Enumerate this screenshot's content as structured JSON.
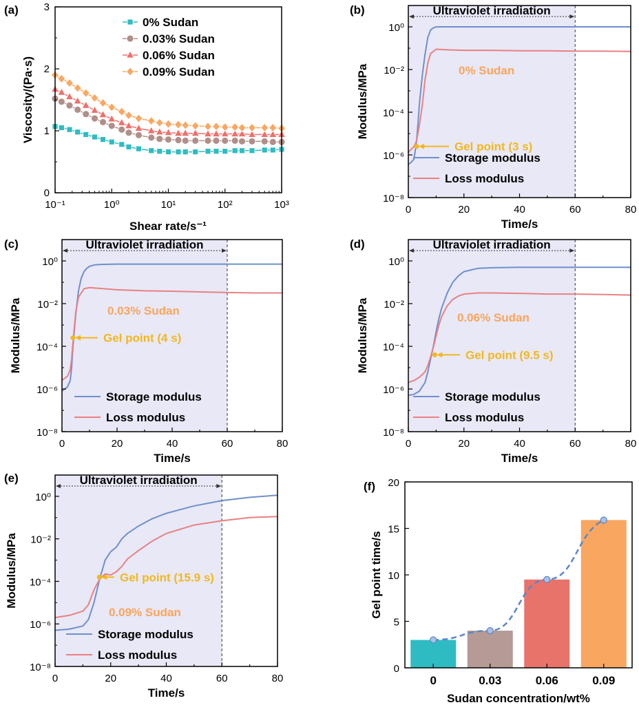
{
  "panels": {
    "a": {
      "label": "(a)",
      "chart_data": {
        "type": "scatter",
        "title": "",
        "xlabel": "Shear rate/s⁻¹",
        "ylabel": "Viscosity/(Pa·s)",
        "xscale": "log",
        "xlim": [
          0.1,
          1000
        ],
        "ylim": [
          0,
          3
        ],
        "xticks": [
          "10⁻¹",
          "10⁰",
          "10¹",
          "10²",
          "10³"
        ],
        "yticks": [
          "0",
          "1",
          "2",
          "3"
        ],
        "legend": "top-center",
        "series": [
          {
            "name": "0% Sudan",
            "color": "#2ebcc2",
            "marker": "square",
            "x": [
              0.1,
              0.13,
              0.18,
              0.25,
              0.35,
              0.5,
              0.7,
              1,
              1.5,
              2,
              3,
              5,
              7,
              10,
              15,
              20,
              30,
              50,
              70,
              100,
              150,
              200,
              300,
              500,
              700,
              1000
            ],
            "y": [
              1.07,
              1.05,
              1.02,
              0.98,
              0.94,
              0.9,
              0.86,
              0.82,
              0.78,
              0.74,
              0.71,
              0.68,
              0.67,
              0.66,
              0.66,
              0.66,
              0.66,
              0.67,
              0.67,
              0.67,
              0.68,
              0.68,
              0.68,
              0.69,
              0.69,
              0.7
            ]
          },
          {
            "name": "0.03% Sudan",
            "color": "#b08f89",
            "marker": "circle",
            "x": [
              0.1,
              0.13,
              0.18,
              0.25,
              0.35,
              0.5,
              0.7,
              1,
              1.5,
              2,
              3,
              5,
              7,
              10,
              15,
              20,
              30,
              50,
              70,
              100,
              150,
              200,
              300,
              500,
              700,
              1000
            ],
            "y": [
              1.52,
              1.47,
              1.41,
              1.34,
              1.27,
              1.2,
              1.14,
              1.08,
              1.02,
              0.97,
              0.93,
              0.89,
              0.87,
              0.86,
              0.85,
              0.84,
              0.84,
              0.84,
              0.84,
              0.84,
              0.84,
              0.83,
              0.83,
              0.83,
              0.82,
              0.82
            ]
          },
          {
            "name": "0.06% Sudan",
            "color": "#ef6f6a",
            "marker": "triangle",
            "x": [
              0.1,
              0.13,
              0.18,
              0.25,
              0.35,
              0.5,
              0.7,
              1,
              1.5,
              2,
              3,
              5,
              7,
              10,
              15,
              20,
              30,
              50,
              70,
              100,
              150,
              200,
              300,
              500,
              700,
              1000
            ],
            "y": [
              1.67,
              1.62,
              1.55,
              1.48,
              1.41,
              1.33,
              1.26,
              1.19,
              1.13,
              1.08,
              1.04,
              1.0,
              0.98,
              0.97,
              0.96,
              0.96,
              0.96,
              0.95,
              0.95,
              0.95,
              0.95,
              0.95,
              0.94,
              0.94,
              0.94,
              0.94
            ]
          },
          {
            "name": "0.09% Sudan",
            "color": "#f9a863",
            "marker": "diamond",
            "x": [
              0.1,
              0.13,
              0.18,
              0.25,
              0.35,
              0.5,
              0.7,
              1,
              1.5,
              2,
              3,
              5,
              7,
              10,
              15,
              20,
              30,
              50,
              70,
              100,
              150,
              200,
              300,
              500,
              700,
              1000
            ],
            "y": [
              1.9,
              1.84,
              1.77,
              1.69,
              1.61,
              1.53,
              1.45,
              1.38,
              1.31,
              1.25,
              1.2,
              1.16,
              1.13,
              1.11,
              1.1,
              1.09,
              1.08,
              1.07,
              1.07,
              1.06,
              1.06,
              1.05,
              1.05,
              1.05,
              1.05,
              1.04
            ]
          }
        ]
      }
    },
    "b": {
      "label": "(b)",
      "chart_data": {
        "type": "line",
        "xlabel": "Time/s",
        "ylabel": "Modulus/MPa",
        "xlim": [
          0,
          80
        ],
        "ylim_log10": [
          -8,
          1
        ],
        "xticks": [
          "0",
          "20",
          "40",
          "60",
          "80"
        ],
        "yticks": [
          "10⁻⁸",
          "10⁻⁶",
          "10⁻⁴",
          "10⁻²",
          "10⁰"
        ],
        "uv_region": [
          0,
          60
        ],
        "uv_label": "Ultraviolet irradiation",
        "sample_label": "0% Sudan",
        "gel_point": 3,
        "gel_label": "Gel point (3 s)",
        "legend": [
          "Storage modulus",
          "Loss modulus"
        ],
        "series": [
          {
            "name": "Storage modulus",
            "color": "#6f8fcb",
            "x": [
              0,
              0.5,
              1,
              2,
              2.5,
              3,
              3.5,
              4,
              5,
              6,
              7,
              8,
              9,
              10,
              12,
              20,
              40,
              60,
              80
            ],
            "y_log10": [
              -6.45,
              -6.4,
              -6.35,
              -6.2,
              -5.8,
              -5.3,
              -4.5,
              -3.6,
              -2.3,
              -1.3,
              -0.5,
              -0.15,
              -0.05,
              0,
              0,
              0,
              0,
              0,
              0
            ]
          },
          {
            "name": "Loss modulus",
            "color": "#e98080",
            "x": [
              0,
              0.5,
              1,
              2,
              2.5,
              3,
              4,
              5,
              6,
              7,
              8,
              10,
              15,
              20,
              30,
              40,
              50,
              60,
              70,
              80
            ],
            "y_log10": [
              -5.9,
              -5.8,
              -5.75,
              -5.6,
              -5.5,
              -5.3,
              -4.6,
              -3.7,
              -2.5,
              -1.7,
              -1.25,
              -1.05,
              -1.08,
              -1.1,
              -1.1,
              -1.12,
              -1.12,
              -1.14,
              -1.14,
              -1.15
            ]
          }
        ]
      }
    },
    "c": {
      "label": "(c)",
      "chart_data": {
        "type": "line",
        "xlabel": "Time/s",
        "ylabel": "Modulus/MPa",
        "xlim": [
          0,
          80
        ],
        "ylim_log10": [
          -8,
          1
        ],
        "xticks": [
          "0",
          "20",
          "40",
          "60",
          "80"
        ],
        "yticks": [
          "10⁻⁸",
          "10⁻⁶",
          "10⁻⁴",
          "10⁻²",
          "10⁰"
        ],
        "uv_region": [
          0,
          60
        ],
        "uv_label": "Ultraviolet irradiation",
        "sample_label": "0.03% Sudan",
        "gel_point": 4,
        "gel_label": "Gel point (4 s)",
        "legend": [
          "Storage modulus",
          "Loss modulus"
        ],
        "series": [
          {
            "name": "Storage modulus",
            "color": "#6f8fcb",
            "x": [
              0,
              1,
              2,
              3,
              3.5,
              4,
              5,
              6,
              7,
              8,
              9,
              10,
              12,
              15,
              20,
              40,
              60,
              80
            ],
            "y_log10": [
              -6.1,
              -6.0,
              -5.9,
              -5.6,
              -5.0,
              -4.0,
              -2.5,
              -1.4,
              -0.8,
              -0.5,
              -0.35,
              -0.25,
              -0.18,
              -0.16,
              -0.15,
              -0.15,
              -0.15,
              -0.15
            ]
          },
          {
            "name": "Loss modulus",
            "color": "#e98080",
            "x": [
              0,
              1,
              2,
              3,
              3.5,
              4,
              5,
              6,
              7,
              8,
              10,
              15,
              20,
              30,
              40,
              50,
              60,
              70,
              80
            ],
            "y_log10": [
              -5.6,
              -5.5,
              -5.4,
              -5.1,
              -4.6,
              -3.8,
              -2.4,
              -1.7,
              -1.5,
              -1.3,
              -1.25,
              -1.3,
              -1.35,
              -1.4,
              -1.42,
              -1.45,
              -1.48,
              -1.5,
              -1.5
            ]
          }
        ]
      }
    },
    "d": {
      "label": "(d)",
      "chart_data": {
        "type": "line",
        "xlabel": "Time/s",
        "ylabel": "Modulus/MPa",
        "xlim": [
          0,
          80
        ],
        "ylim_log10": [
          -8,
          1
        ],
        "xticks": [
          "0",
          "20",
          "40",
          "60",
          "80"
        ],
        "yticks": [
          "10⁻⁸",
          "10⁻⁶",
          "10⁻⁴",
          "10⁻²",
          "10⁰"
        ],
        "uv_region": [
          0,
          60
        ],
        "uv_label": "Ultraviolet irradiation",
        "sample_label": "0.06% Sudan",
        "gel_point": 9.5,
        "gel_label": "Gel point (9.5 s)",
        "legend": [
          "Storage modulus",
          "Loss modulus"
        ],
        "series": [
          {
            "name": "Storage modulus",
            "color": "#6f8fcb",
            "x": [
              0,
              2,
              4,
              6,
              7,
              8,
              9,
              10,
              11,
              12,
              14,
              16,
              18,
              20,
              25,
              30,
              40,
              60,
              80
            ],
            "y_log10": [
              -6.3,
              -6.25,
              -6.1,
              -5.7,
              -5.2,
              -4.6,
              -4.0,
              -3.3,
              -2.7,
              -2.2,
              -1.5,
              -1.0,
              -0.7,
              -0.5,
              -0.35,
              -0.32,
              -0.3,
              -0.3,
              -0.3
            ]
          },
          {
            "name": "Loss modulus",
            "color": "#e98080",
            "x": [
              0,
              2,
              4,
              6,
              7,
              8,
              9,
              10,
              11,
              12,
              14,
              16,
              18,
              20,
              25,
              30,
              40,
              50,
              60,
              70,
              80
            ],
            "y_log10": [
              -5.7,
              -5.6,
              -5.45,
              -5.2,
              -4.9,
              -4.5,
              -4.05,
              -3.5,
              -3.0,
              -2.6,
              -2.1,
              -1.8,
              -1.65,
              -1.55,
              -1.5,
              -1.5,
              -1.52,
              -1.55,
              -1.55,
              -1.57,
              -1.6
            ]
          }
        ]
      }
    },
    "e": {
      "label": "(e)",
      "chart_data": {
        "type": "line",
        "xlabel": "Time/s",
        "ylabel": "Modulus/MPa",
        "xlim": [
          0,
          80
        ],
        "ylim_log10": [
          -8,
          1
        ],
        "xticks": [
          "0",
          "20",
          "40",
          "60",
          "80"
        ],
        "yticks": [
          "10⁻⁸",
          "10⁻⁶",
          "10⁻⁴",
          "10⁻²",
          "10⁰"
        ],
        "uv_region": [
          0,
          60
        ],
        "uv_label": "Ultraviolet irradiation",
        "sample_label": "0.09% Sudan",
        "gel_point": 15.9,
        "gel_label": "Gel point (15.9 s)",
        "legend": [
          "Storage modulus",
          "Loss modulus"
        ],
        "series": [
          {
            "name": "Storage modulus",
            "color": "#6f8fcb",
            "x": [
              0,
              5,
              10,
              12,
              14,
              16,
              18,
              20,
              22,
              24,
              26,
              30,
              35,
              40,
              50,
              60,
              70,
              80
            ],
            "y_log10": [
              -6.3,
              -6.25,
              -6.1,
              -5.8,
              -5.0,
              -3.9,
              -3.0,
              -2.6,
              -2.4,
              -2.0,
              -1.75,
              -1.4,
              -1.05,
              -0.8,
              -0.45,
              -0.2,
              -0.05,
              0.05
            ]
          },
          {
            "name": "Loss modulus",
            "color": "#e98080",
            "x": [
              0,
              5,
              10,
              12,
              14,
              16,
              18,
              20,
              22,
              24,
              26,
              30,
              35,
              40,
              50,
              60,
              70,
              80
            ],
            "y_log10": [
              -5.7,
              -5.6,
              -5.4,
              -5.1,
              -4.4,
              -3.9,
              -3.65,
              -3.7,
              -3.55,
              -3.3,
              -2.95,
              -2.55,
              -2.1,
              -1.75,
              -1.35,
              -1.15,
              -1.0,
              -0.95
            ]
          }
        ]
      }
    },
    "f": {
      "label": "(f)",
      "chart_data": {
        "type": "bar",
        "xlabel": "Sudan concentration/wt%",
        "ylabel": "Gel point time/s",
        "categories": [
          "0",
          "0.03",
          "0.06",
          "0.09"
        ],
        "values": [
          3,
          4,
          9.5,
          15.9
        ],
        "colors": [
          "#2ebcc2",
          "#b59a95",
          "#e8736b",
          "#f9a660"
        ],
        "ylim": [
          0,
          20
        ],
        "yticks": [
          "0",
          "5",
          "10",
          "15",
          "20"
        ],
        "trend_color": "#5b86c8"
      }
    }
  }
}
